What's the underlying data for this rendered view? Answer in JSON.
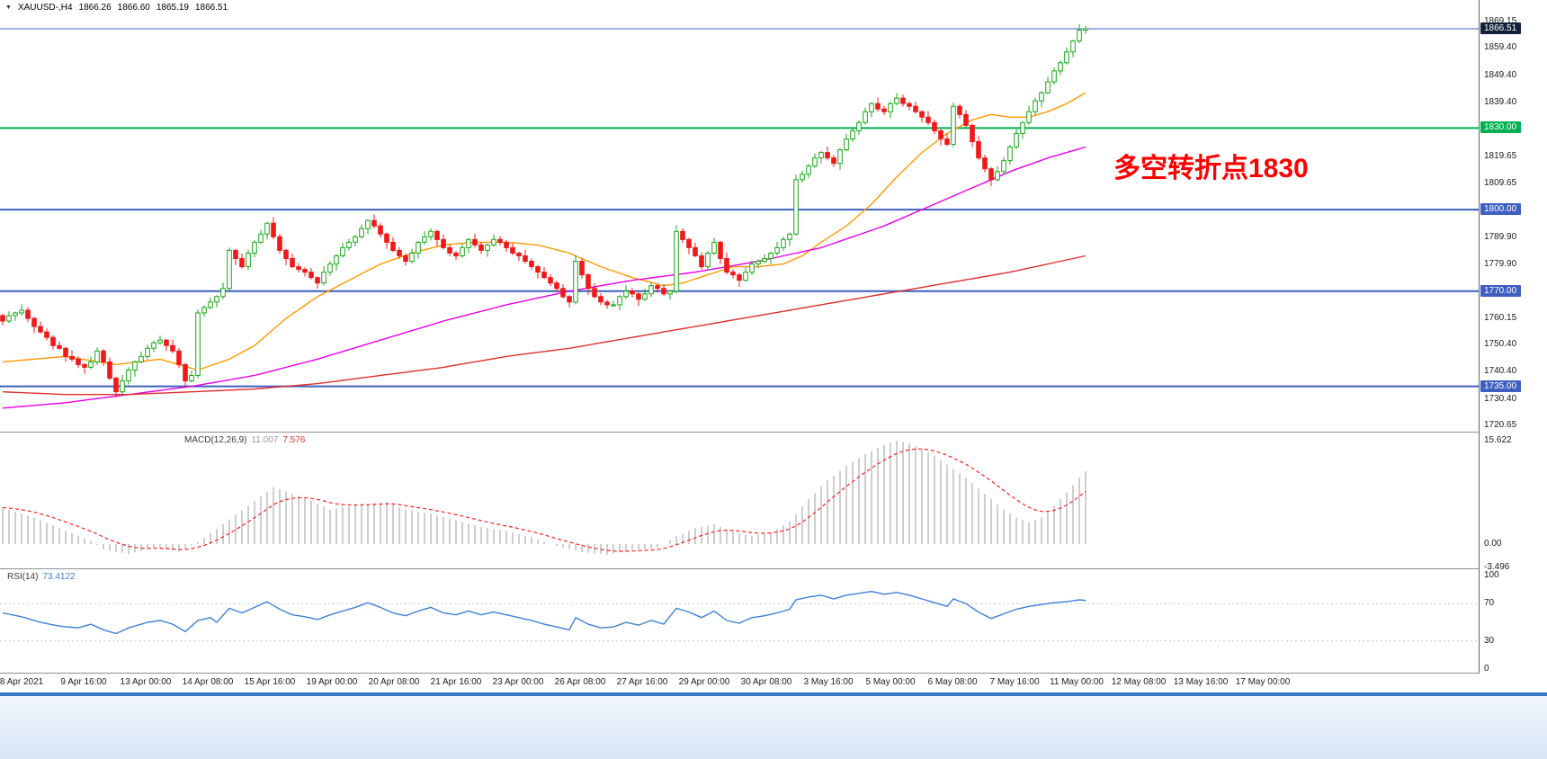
{
  "titlebar": {
    "symbol_timeframe": "XAUUSD-,H4",
    "open": "1866.26",
    "high": "1866.60",
    "low": "1865.19",
    "close": "1866.51",
    "dropdown_icon": "▼"
  },
  "annotation": {
    "text": "多空转折点1830",
    "color": "#fe0000"
  },
  "price_axis": {
    "ticks": [
      "1869.15",
      "1859.40",
      "1849.40",
      "1839.40",
      "1819.65",
      "1809.65",
      "1789.90",
      "1779.90",
      "1760.15",
      "1750.40",
      "1740.40",
      "1730.40",
      "1720.65"
    ],
    "badges": [
      {
        "text": "1866.51",
        "bg": "#13223a"
      },
      {
        "text": "1830.00",
        "bg": "#00b050"
      },
      {
        "text": "1800.00",
        "bg": "#3f5fc0"
      },
      {
        "text": "1770.00",
        "bg": "#3f5fc0"
      },
      {
        "text": "1735.00",
        "bg": "#3f5fc0"
      }
    ]
  },
  "chart_data": {
    "type": "candlestick",
    "symbol": "XAUUSD-",
    "timeframe": "H4",
    "ohlc_current": {
      "open": 1866.26,
      "high": 1866.6,
      "low": 1865.19,
      "close": 1866.51
    },
    "ylim": [
      1719,
      1877
    ],
    "x_labels": [
      "8 Apr 2021",
      "9 Apr 16:00",
      "13 Apr 00:00",
      "14 Apr 08:00",
      "15 Apr 16:00",
      "19 Apr 00:00",
      "20 Apr 08:00",
      "21 Apr 16:00",
      "23 Apr 00:00",
      "26 Apr 08:00",
      "27 Apr 16:00",
      "29 Apr 00:00",
      "30 Apr 08:00",
      "3 May 16:00",
      "5 May 00:00",
      "6 May 08:00",
      "7 May 16:00",
      "11 May 00:00",
      "12 May 08:00",
      "13 May 16:00",
      "17 May 00:00"
    ],
    "closes": [
      1759,
      1761,
      1762,
      1763,
      1760,
      1757,
      1755,
      1753,
      1750,
      1749,
      1746,
      1745,
      1743,
      1742,
      1744,
      1748,
      1744,
      1738,
      1733,
      1737,
      1741,
      1744,
      1746,
      1749,
      1751,
      1752,
      1750,
      1748,
      1743,
      1737,
      1739,
      1762,
      1764,
      1766,
      1768,
      1771,
      1785,
      1782,
      1779,
      1784,
      1788,
      1791,
      1795,
      1790,
      1785,
      1782,
      1779,
      1778,
      1777,
      1775,
      1773,
      1777,
      1780,
      1783,
      1786,
      1788,
      1790,
      1793,
      1796,
      1794,
      1791,
      1788,
      1785,
      1783,
      1781,
      1784,
      1788,
      1790,
      1792,
      1789,
      1786,
      1784,
      1783,
      1786,
      1789,
      1787,
      1785,
      1787,
      1789,
      1788,
      1786,
      1784,
      1783,
      1781,
      1779,
      1777,
      1775,
      1773,
      1771,
      1768,
      1766,
      1781,
      1776,
      1771,
      1768,
      1766,
      1765,
      1765,
      1768,
      1770,
      1769,
      1767,
      1769,
      1772,
      1771,
      1769,
      1770,
      1792,
      1789,
      1786,
      1783,
      1779,
      1784,
      1788,
      1782,
      1777,
      1776,
      1774,
      1777,
      1780,
      1781,
      1782,
      1784,
      1786,
      1789,
      1791,
      1811,
      1813,
      1816,
      1819,
      1821,
      1819,
      1817,
      1822,
      1826,
      1829,
      1832,
      1836,
      1839,
      1837,
      1836,
      1839,
      1841,
      1839,
      1838,
      1836,
      1834,
      1832,
      1829,
      1826,
      1824,
      1838,
      1835,
      1831,
      1825,
      1819,
      1815,
      1811,
      1814,
      1818,
      1823,
      1828,
      1832,
      1836,
      1840,
      1843,
      1847,
      1851,
      1854,
      1858,
      1862,
      1866,
      1866.5
    ],
    "wick_up": [
      0.8,
      1.6,
      0.5,
      2.2,
      1.1,
      0.6,
      1.9,
      1.3
    ],
    "wick_down": [
      1.5,
      0.7,
      2.0,
      0.9,
      1.3,
      2.4,
      0.6,
      1.1
    ],
    "candle_colors": {
      "up_stroke": "#18a818",
      "up_fill": "#ffffff",
      "down": "#f01818"
    },
    "h_lines": [
      {
        "price": 1866.51,
        "color": "#3f5fc0",
        "width": 1,
        "name": "current-price-line"
      },
      {
        "price": 1830,
        "color": "#00b050",
        "width": 2,
        "name": "hline-1830"
      },
      {
        "price": 1800,
        "color": "#3f5fc0",
        "width": 2,
        "name": "hline-1800"
      },
      {
        "price": 1770,
        "color": "#3f5fc0",
        "width": 2,
        "name": "hline-1770"
      },
      {
        "price": 1735,
        "color": "#3f5fc0",
        "width": 2,
        "name": "hline-1735"
      }
    ],
    "moving_averages": [
      {
        "name": "ma-fast",
        "color": "#ff9900",
        "points": [
          [
            0,
            1744
          ],
          [
            10,
            1746
          ],
          [
            18,
            1743
          ],
          [
            25,
            1745
          ],
          [
            31,
            1741
          ],
          [
            36,
            1745
          ],
          [
            40,
            1750
          ],
          [
            45,
            1760
          ],
          [
            50,
            1768
          ],
          [
            55,
            1774
          ],
          [
            60,
            1780
          ],
          [
            65,
            1784
          ],
          [
            70,
            1787
          ],
          [
            75,
            1788
          ],
          [
            80,
            1788
          ],
          [
            85,
            1787
          ],
          [
            90,
            1784
          ],
          [
            95,
            1779
          ],
          [
            100,
            1775
          ],
          [
            105,
            1772
          ],
          [
            108,
            1773
          ],
          [
            112,
            1776
          ],
          [
            116,
            1779
          ],
          [
            120,
            1779
          ],
          [
            124,
            1780
          ],
          [
            127,
            1783
          ],
          [
            130,
            1788
          ],
          [
            134,
            1794
          ],
          [
            138,
            1802
          ],
          [
            142,
            1812
          ],
          [
            146,
            1821
          ],
          [
            150,
            1828
          ],
          [
            154,
            1833
          ],
          [
            157,
            1835
          ],
          [
            160,
            1834
          ],
          [
            163,
            1834
          ],
          [
            166,
            1836
          ],
          [
            169,
            1839
          ],
          [
            172,
            1843
          ]
        ]
      },
      {
        "name": "ma-mid",
        "color": "#e600e6",
        "points": [
          [
            0,
            1727
          ],
          [
            10,
            1729
          ],
          [
            20,
            1732
          ],
          [
            30,
            1735
          ],
          [
            40,
            1739
          ],
          [
            50,
            1745
          ],
          [
            60,
            1752
          ],
          [
            70,
            1759
          ],
          [
            80,
            1765
          ],
          [
            90,
            1770
          ],
          [
            100,
            1774
          ],
          [
            110,
            1777
          ],
          [
            120,
            1781
          ],
          [
            130,
            1786
          ],
          [
            140,
            1794
          ],
          [
            150,
            1804
          ],
          [
            160,
            1814
          ],
          [
            166,
            1819
          ],
          [
            172,
            1823
          ]
        ]
      },
      {
        "name": "ma-slow",
        "color": "#e03030",
        "points": [
          [
            0,
            1733
          ],
          [
            10,
            1732
          ],
          [
            20,
            1732
          ],
          [
            30,
            1733
          ],
          [
            40,
            1734
          ],
          [
            50,
            1736
          ],
          [
            60,
            1739
          ],
          [
            70,
            1742
          ],
          [
            80,
            1746
          ],
          [
            90,
            1749
          ],
          [
            100,
            1753
          ],
          [
            110,
            1757
          ],
          [
            120,
            1761
          ],
          [
            130,
            1765
          ],
          [
            140,
            1769
          ],
          [
            150,
            1773
          ],
          [
            160,
            1777
          ],
          [
            166,
            1780
          ],
          [
            172,
            1783
          ]
        ]
      }
    ],
    "macd": {
      "label": "MACD(12,26,9)",
      "main_value": "11.007",
      "signal_value": "7.576",
      "y_ticks": [
        "15.622",
        "0.00",
        "-3.496"
      ],
      "hist_color": "#b9b9b9",
      "signal_color": "#ff2020",
      "signal_period": 9,
      "main_points": [
        [
          0,
          5.5
        ],
        [
          5,
          4
        ],
        [
          10,
          2
        ],
        [
          14,
          0.5
        ],
        [
          16,
          -0.8
        ],
        [
          20,
          -1.5
        ],
        [
          24,
          -0.5
        ],
        [
          28,
          -1.2
        ],
        [
          31,
          0.3
        ],
        [
          35,
          3
        ],
        [
          40,
          6.5
        ],
        [
          43,
          8.6
        ],
        [
          48,
          7
        ],
        [
          52,
          5.2
        ],
        [
          57,
          6
        ],
        [
          61,
          6.3
        ],
        [
          64,
          5.2
        ],
        [
          68,
          4.6
        ],
        [
          72,
          3.6
        ],
        [
          76,
          2.6
        ],
        [
          80,
          2
        ],
        [
          84,
          1
        ],
        [
          88,
          -0.3
        ],
        [
          92,
          -1.2
        ],
        [
          96,
          -1.6
        ],
        [
          100,
          -0.9
        ],
        [
          104,
          -0.6
        ],
        [
          107,
          1.2
        ],
        [
          110,
          2.4
        ],
        [
          113,
          3
        ],
        [
          116,
          1.9
        ],
        [
          119,
          1.2
        ],
        [
          122,
          1.8
        ],
        [
          125,
          3.4
        ],
        [
          128,
          6.8
        ],
        [
          131,
          9.6
        ],
        [
          134,
          11.8
        ],
        [
          137,
          13.6
        ],
        [
          140,
          15
        ],
        [
          142,
          15.6
        ],
        [
          144,
          15.2
        ],
        [
          147,
          13.9
        ],
        [
          150,
          12
        ],
        [
          153,
          10
        ],
        [
          156,
          7.6
        ],
        [
          159,
          5.2
        ],
        [
          161,
          4
        ],
        [
          163,
          3.3
        ],
        [
          165,
          4
        ],
        [
          167,
          5.8
        ],
        [
          169,
          7.8
        ],
        [
          171,
          10
        ],
        [
          172,
          11
        ]
      ]
    },
    "rsi": {
      "label": "RSI(14)",
      "value": "73.4122",
      "y_ticks": [
        "100",
        "70",
        "30",
        "0"
      ],
      "levels": [
        70,
        30
      ],
      "color": "#3e81d6",
      "points": [
        [
          0,
          60
        ],
        [
          3,
          56
        ],
        [
          6,
          50
        ],
        [
          9,
          46
        ],
        [
          12,
          44
        ],
        [
          14,
          48
        ],
        [
          16,
          42
        ],
        [
          18,
          38
        ],
        [
          20,
          44
        ],
        [
          23,
          50
        ],
        [
          25,
          52
        ],
        [
          27,
          48
        ],
        [
          29,
          40
        ],
        [
          31,
          52
        ],
        [
          33,
          55
        ],
        [
          34,
          50
        ],
        [
          36,
          65
        ],
        [
          38,
          60
        ],
        [
          40,
          66
        ],
        [
          42,
          72
        ],
        [
          44,
          64
        ],
        [
          46,
          58
        ],
        [
          48,
          56
        ],
        [
          50,
          53
        ],
        [
          52,
          58
        ],
        [
          54,
          62
        ],
        [
          56,
          66
        ],
        [
          58,
          71
        ],
        [
          60,
          66
        ],
        [
          62,
          60
        ],
        [
          64,
          57
        ],
        [
          66,
          62
        ],
        [
          68,
          66
        ],
        [
          70,
          60
        ],
        [
          72,
          58
        ],
        [
          74,
          62
        ],
        [
          76,
          58
        ],
        [
          78,
          61
        ],
        [
          80,
          58
        ],
        [
          82,
          55
        ],
        [
          84,
          52
        ],
        [
          86,
          48
        ],
        [
          88,
          45
        ],
        [
          90,
          42
        ],
        [
          91,
          55
        ],
        [
          93,
          48
        ],
        [
          95,
          44
        ],
        [
          97,
          45
        ],
        [
          99,
          50
        ],
        [
          101,
          47
        ],
        [
          103,
          52
        ],
        [
          105,
          48
        ],
        [
          107,
          65
        ],
        [
          109,
          61
        ],
        [
          111,
          55
        ],
        [
          113,
          62
        ],
        [
          115,
          52
        ],
        [
          117,
          49
        ],
        [
          119,
          55
        ],
        [
          121,
          57
        ],
        [
          123,
          60
        ],
        [
          125,
          64
        ],
        [
          126,
          74
        ],
        [
          128,
          77
        ],
        [
          130,
          79
        ],
        [
          132,
          75
        ],
        [
          134,
          79
        ],
        [
          136,
          81
        ],
        [
          138,
          83
        ],
        [
          140,
          80
        ],
        [
          142,
          82
        ],
        [
          144,
          79
        ],
        [
          146,
          75
        ],
        [
          148,
          71
        ],
        [
          150,
          67
        ],
        [
          151,
          75
        ],
        [
          153,
          70
        ],
        [
          155,
          61
        ],
        [
          157,
          54
        ],
        [
          159,
          59
        ],
        [
          161,
          64
        ],
        [
          163,
          67
        ],
        [
          165,
          69
        ],
        [
          167,
          71
        ],
        [
          169,
          72
        ],
        [
          171,
          74
        ],
        [
          172,
          73.41
        ]
      ]
    }
  }
}
